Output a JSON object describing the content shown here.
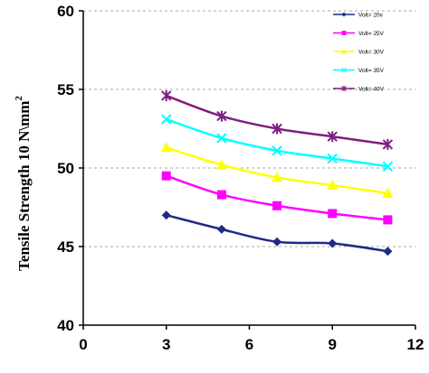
{
  "chart_data": {
    "type": "line",
    "xlabel": "",
    "ylabel": "Tensile Strength  10 N\\mm",
    "ylabel_superscript": "2",
    "xlim": [
      0,
      12
    ],
    "ylim": [
      40,
      60
    ],
    "x_ticks": [
      "0",
      "3",
      "6",
      "9",
      "12"
    ],
    "y_ticks": [
      "40",
      "45",
      "50",
      "55",
      "60"
    ],
    "grid": "horizontal dashed",
    "legend_position": "top-right",
    "x": [
      3,
      5,
      7,
      9,
      11
    ],
    "series": [
      {
        "name": "Volt= 20v",
        "color": "#1f2a86",
        "marker": "diamond",
        "values": [
          47.0,
          46.1,
          45.3,
          45.2,
          44.7
        ]
      },
      {
        "name": "Volt= 25V",
        "color": "#ff00ff",
        "marker": "square",
        "values": [
          49.5,
          48.3,
          47.6,
          47.1,
          46.7
        ]
      },
      {
        "name": "Volt= 30V",
        "color": "#ffff00",
        "marker": "triangle",
        "values": [
          51.3,
          50.2,
          49.4,
          48.9,
          48.4
        ]
      },
      {
        "name": "Volt= 35V",
        "color": "#00ffff",
        "marker": "x",
        "values": [
          53.1,
          51.9,
          51.1,
          50.6,
          50.1
        ]
      },
      {
        "name": "Volt= 40V",
        "color": "#7f1f7f",
        "marker": "star",
        "values": [
          54.6,
          53.3,
          52.5,
          52.0,
          51.5
        ]
      }
    ]
  }
}
